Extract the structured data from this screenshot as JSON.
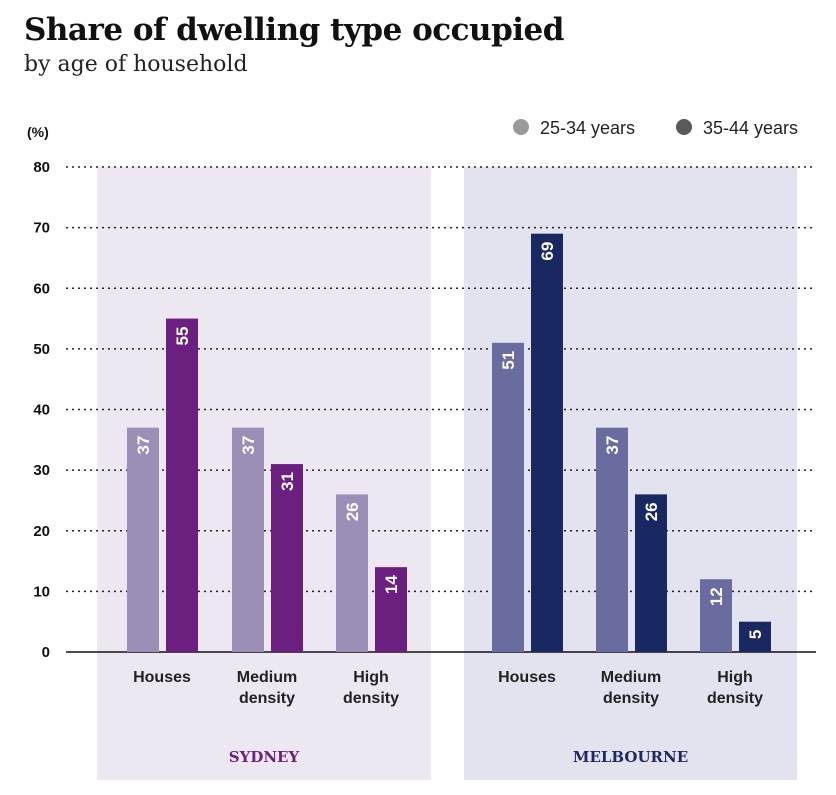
{
  "chart_data": {
    "type": "bar",
    "title": "Share of dwelling type occupied",
    "subtitle": "by age of household",
    "ylabel": "(%)",
    "ylim": [
      0,
      80
    ],
    "yticks": [
      0,
      10,
      20,
      30,
      40,
      50,
      60,
      70,
      80
    ],
    "grid": true,
    "legend_position": "top-right",
    "legend": [
      {
        "name": "25-34 years",
        "color": "#9a9a9a"
      },
      {
        "name": "35-44 years",
        "color": "#5a5a5a"
      }
    ],
    "panels": [
      {
        "name": "SYDNEY",
        "label_color": "#6a2080",
        "background": "#ede7f2",
        "categories": [
          [
            "Houses"
          ],
          [
            "Medium",
            "density"
          ],
          [
            "High",
            "density"
          ]
        ],
        "series": [
          {
            "name": "25-34 years",
            "color": "#9b8fb8",
            "values": [
              37,
              37,
              26
            ],
            "labels": [
              "37",
              "37",
              "26"
            ]
          },
          {
            "name": "35-44 years",
            "color": "#6b2080",
            "values": [
              55,
              31,
              14
            ],
            "labels": [
              "55",
              "31",
              "14"
            ]
          }
        ]
      },
      {
        "name": "MELBOURNE",
        "label_color": "#1e2862",
        "background": "#e2e3ef",
        "categories": [
          [
            "Houses"
          ],
          [
            "Medium",
            "density"
          ],
          [
            "High",
            "density"
          ]
        ],
        "series": [
          {
            "name": "25-34 years",
            "color": "#6a6b9e",
            "values": [
              51,
              37,
              12
            ],
            "labels": [
              "51",
              "37",
              "12"
            ]
          },
          {
            "name": "35-44 years",
            "color": "#1a2862",
            "values": [
              69,
              26,
              5
            ],
            "labels": [
              "69",
              "26",
              "5"
            ]
          }
        ]
      }
    ]
  }
}
